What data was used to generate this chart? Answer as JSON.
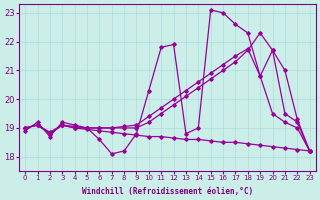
{
  "title": "",
  "xlabel": "Windchill (Refroidissement éolien,°C)",
  "ylabel": "",
  "background_color": "#cceee8",
  "line_color": "#990099",
  "grid_color": "#aadddd",
  "xlim": [
    -0.5,
    23.5
  ],
  "ylim": [
    17.5,
    23.3
  ],
  "xticks": [
    0,
    1,
    2,
    3,
    4,
    5,
    6,
    7,
    8,
    9,
    10,
    11,
    12,
    13,
    14,
    15,
    16,
    17,
    18,
    19,
    20,
    21,
    22,
    23
  ],
  "yticks": [
    18,
    19,
    20,
    21,
    22,
    23
  ],
  "series": [
    {
      "x": [
        0,
        1,
        2,
        3,
        4,
        5,
        6,
        7,
        8,
        9,
        10,
        11,
        12,
        13,
        14,
        15,
        16,
        17,
        18,
        19,
        20,
        21,
        22,
        23
      ],
      "y": [
        18.9,
        19.2,
        18.7,
        19.2,
        19.1,
        19.0,
        18.6,
        18.1,
        18.2,
        18.8,
        20.3,
        21.8,
        21.9,
        18.8,
        19.0,
        23.1,
        23.0,
        22.6,
        22.3,
        20.8,
        19.5,
        19.2,
        19.0,
        18.2
      ]
    },
    {
      "x": [
        0,
        1,
        2,
        3,
        4,
        5,
        6,
        7,
        8,
        9,
        10,
        11,
        12,
        13,
        14,
        15,
        16,
        17,
        18,
        19,
        20,
        21,
        22,
        23
      ],
      "y": [
        19.0,
        19.1,
        18.85,
        19.1,
        19.05,
        19.0,
        19.0,
        19.0,
        19.05,
        19.1,
        19.4,
        19.7,
        20.0,
        20.3,
        20.6,
        20.9,
        21.2,
        21.5,
        21.75,
        20.8,
        21.7,
        19.5,
        19.2,
        18.2
      ]
    },
    {
      "x": [
        0,
        1,
        2,
        3,
        4,
        5,
        6,
        7,
        8,
        9,
        10,
        11,
        12,
        13,
        14,
        15,
        16,
        17,
        18,
        19,
        20,
        21,
        22,
        23
      ],
      "y": [
        19.0,
        19.1,
        18.8,
        19.1,
        19.0,
        19.0,
        19.0,
        19.0,
        19.0,
        19.0,
        19.2,
        19.5,
        19.8,
        20.1,
        20.4,
        20.7,
        21.0,
        21.3,
        21.7,
        22.3,
        21.7,
        21.0,
        19.3,
        18.2
      ]
    },
    {
      "x": [
        0,
        1,
        2,
        3,
        4,
        5,
        6,
        7,
        8,
        9,
        10,
        11,
        12,
        13,
        14,
        15,
        16,
        17,
        18,
        19,
        20,
        21,
        22,
        23
      ],
      "y": [
        19.0,
        19.1,
        18.8,
        19.1,
        19.0,
        18.95,
        18.9,
        18.85,
        18.8,
        18.75,
        18.7,
        18.7,
        18.65,
        18.6,
        18.6,
        18.55,
        18.5,
        18.5,
        18.45,
        18.4,
        18.35,
        18.3,
        18.25,
        18.2
      ]
    }
  ]
}
